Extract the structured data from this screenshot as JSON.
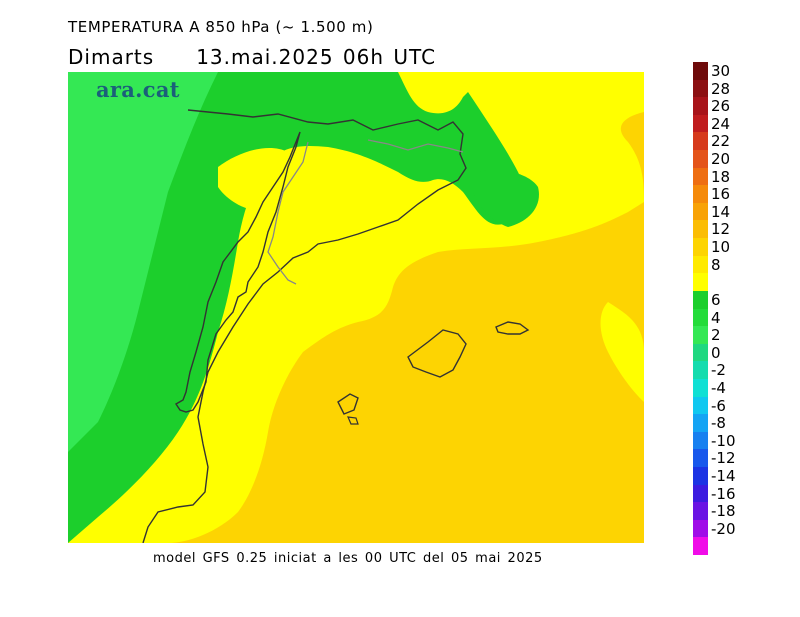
{
  "header": {
    "title": "TEMPERATURA A 850 hPa (~ 1.500 m)",
    "day": "Dimarts",
    "datetime": "13.mai.2025 06h UTC"
  },
  "brand": "ara.cat",
  "footer": "model GFS 0.25 iniciat a les 00 UTC del 05 mai 2025",
  "legend": [
    {
      "label": "30",
      "color": "#6e0a0a"
    },
    {
      "label": "28",
      "color": "#8c1012"
    },
    {
      "label": "26",
      "color": "#a8141a"
    },
    {
      "label": "24",
      "color": "#c01c1e"
    },
    {
      "label": "22",
      "color": "#d63a1c"
    },
    {
      "label": "20",
      "color": "#e4541a"
    },
    {
      "label": "18",
      "color": "#ee6e12"
    },
    {
      "label": "16",
      "color": "#f58a0a"
    },
    {
      "label": "14",
      "color": "#f8a206"
    },
    {
      "label": "12",
      "color": "#fbbd04"
    },
    {
      "label": "10",
      "color": "#fdd402"
    },
    {
      "label": "8",
      "color": "#ffea00"
    },
    {
      "label": "",
      "color": "#ffff00"
    },
    {
      "label": "6",
      "color": "#1ccf2c"
    },
    {
      "label": "4",
      "color": "#24dc3a"
    },
    {
      "label": "2",
      "color": "#34e854"
    },
    {
      "label": "0",
      "color": "#1fd880"
    },
    {
      "label": "-2",
      "color": "#14dcae"
    },
    {
      "label": "-4",
      "color": "#10e0d4"
    },
    {
      "label": "-6",
      "color": "#10c8f0"
    },
    {
      "label": "-8",
      "color": "#14a4f4"
    },
    {
      "label": "-10",
      "color": "#1880f0"
    },
    {
      "label": "-12",
      "color": "#1858ec"
    },
    {
      "label": "-14",
      "color": "#1c34e4"
    },
    {
      "label": "-16",
      "color": "#3c1ce0"
    },
    {
      "label": "-18",
      "color": "#6a14e4"
    },
    {
      "label": "-20",
      "color": "#a00ce8"
    },
    {
      "label": "",
      "color": "#f00ce8"
    }
  ]
}
